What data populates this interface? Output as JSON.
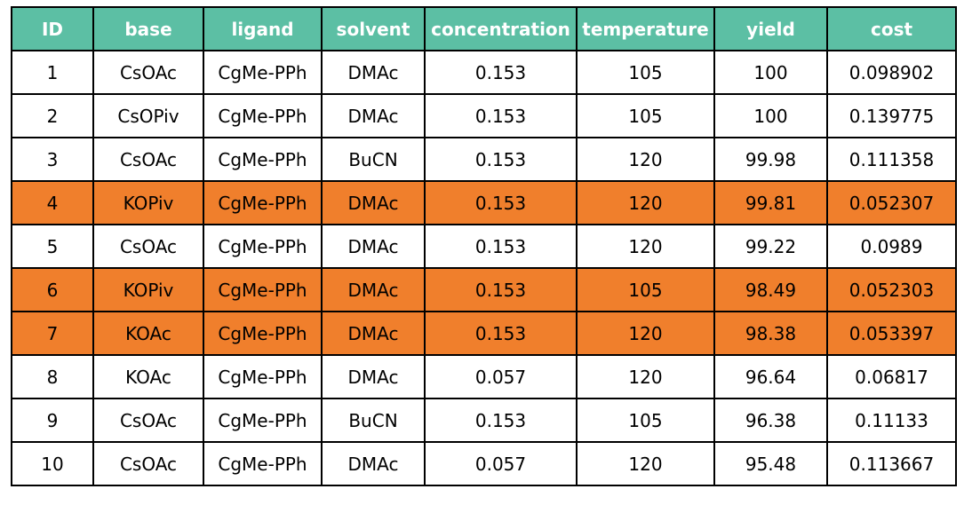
{
  "highlight_color": "#f07f2c",
  "header_color": "#5cbfa4",
  "table": {
    "columns": [
      "ID",
      "base",
      "ligand",
      "solvent",
      "concentration",
      "temperature",
      "yield",
      "cost"
    ],
    "rows": [
      {
        "cells": [
          "1",
          "CsOAc",
          "CgMe-PPh",
          "DMAc",
          "0.153",
          "105",
          "100",
          "0.098902"
        ],
        "highlighted": false
      },
      {
        "cells": [
          "2",
          "CsOPiv",
          "CgMe-PPh",
          "DMAc",
          "0.153",
          "105",
          "100",
          "0.139775"
        ],
        "highlighted": false
      },
      {
        "cells": [
          "3",
          "CsOAc",
          "CgMe-PPh",
          "BuCN",
          "0.153",
          "120",
          "99.98",
          "0.111358"
        ],
        "highlighted": false
      },
      {
        "cells": [
          "4",
          "KOPiv",
          "CgMe-PPh",
          "DMAc",
          "0.153",
          "120",
          "99.81",
          "0.052307"
        ],
        "highlighted": true
      },
      {
        "cells": [
          "5",
          "CsOAc",
          "CgMe-PPh",
          "DMAc",
          "0.153",
          "120",
          "99.22",
          "0.0989"
        ],
        "highlighted": false
      },
      {
        "cells": [
          "6",
          "KOPiv",
          "CgMe-PPh",
          "DMAc",
          "0.153",
          "105",
          "98.49",
          "0.052303"
        ],
        "highlighted": true
      },
      {
        "cells": [
          "7",
          "KOAc",
          "CgMe-PPh",
          "DMAc",
          "0.153",
          "120",
          "98.38",
          "0.053397"
        ],
        "highlighted": true
      },
      {
        "cells": [
          "8",
          "KOAc",
          "CgMe-PPh",
          "DMAc",
          "0.057",
          "120",
          "96.64",
          "0.06817"
        ],
        "highlighted": false
      },
      {
        "cells": [
          "9",
          "CsOAc",
          "CgMe-PPh",
          "BuCN",
          "0.153",
          "105",
          "96.38",
          "0.11133"
        ],
        "highlighted": false
      },
      {
        "cells": [
          "10",
          "CsOAc",
          "CgMe-PPh",
          "DMAc",
          "0.057",
          "120",
          "95.48",
          "0.113667"
        ],
        "highlighted": false
      }
    ]
  }
}
